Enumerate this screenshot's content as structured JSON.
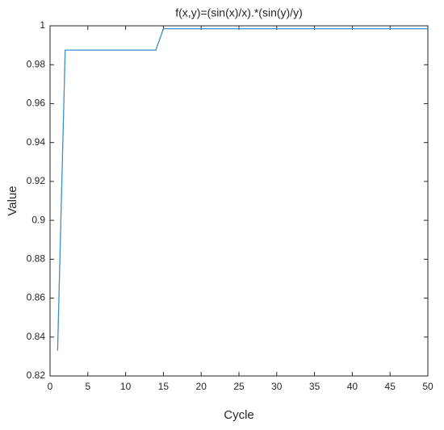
{
  "chart_data": {
    "type": "line",
    "title": "f(x,y)=(sin(x)/x).*(sin(y)/y)",
    "x_label": "Cycle",
    "y_label": "Value",
    "series": [
      {
        "color": "#3a8fc7",
        "x": [
          1,
          2,
          14,
          15,
          50
        ],
        "values": [
          0.833,
          0.9875,
          0.9875,
          0.9985,
          0.9985
        ]
      }
    ],
    "xlim": [
      0,
      50
    ],
    "xticks": [
      0,
      5,
      10,
      15,
      20,
      25,
      30,
      35,
      40,
      45,
      50
    ],
    "ylim": [
      0.82,
      1
    ],
    "yticks": [
      0.82,
      0.84,
      0.86,
      0.88,
      0.9,
      0.92,
      0.94,
      0.96,
      0.98,
      1
    ],
    "grid": false
  }
}
